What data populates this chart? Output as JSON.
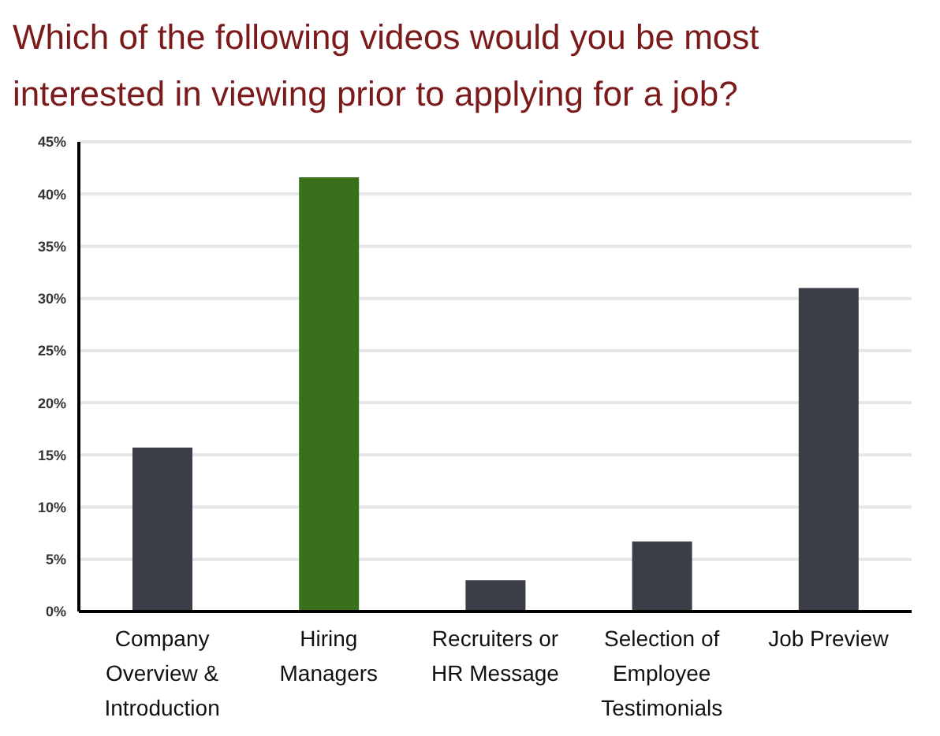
{
  "chart_data": {
    "type": "bar",
    "title": "Which of the following videos would you be most interested in viewing prior to applying for a job?",
    "categories": [
      "Company Overview & Introduction",
      "Hiring Managers",
      "Recruiters or HR Message",
      "Selection of Employee Testimonials",
      "Job Preview"
    ],
    "values": [
      15.7,
      41.6,
      3.0,
      6.7,
      31.0
    ],
    "colors": [
      "#3b3d47",
      "#38701c",
      "#3b3d47",
      "#3b3d47",
      "#3b3d47"
    ],
    "ylim": [
      0,
      45
    ],
    "yticks": [
      {
        "value": 0,
        "label": "0%"
      },
      {
        "value": 5,
        "label": "5%"
      },
      {
        "value": 10,
        "label": "10%"
      },
      {
        "value": 15,
        "label": "15%"
      },
      {
        "value": 20,
        "label": "20%"
      },
      {
        "value": 25,
        "label": "25%"
      },
      {
        "value": 30,
        "label": "30%"
      },
      {
        "value": 35,
        "label": "35%"
      },
      {
        "value": 40,
        "label": "40%"
      },
      {
        "value": 45,
        "label": "45%"
      }
    ],
    "grid": "y"
  }
}
